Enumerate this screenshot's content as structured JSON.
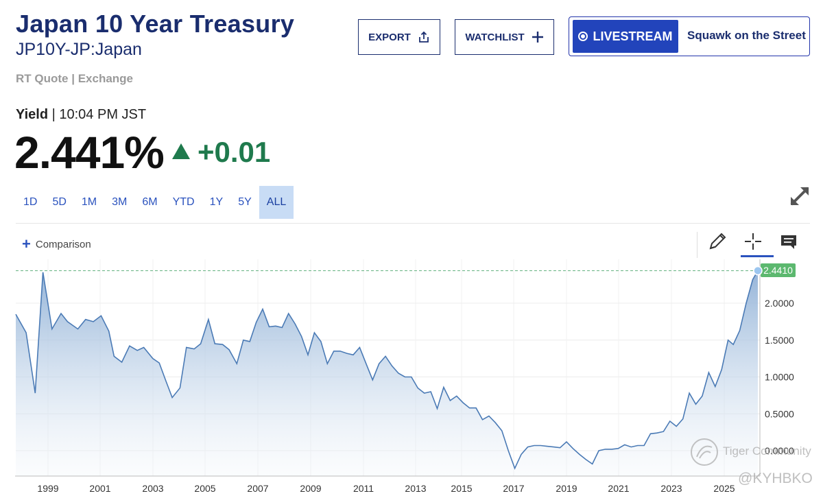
{
  "header": {
    "title": "Japan 10 Year Treasury",
    "symbol": "JP10Y-JP:Japan",
    "rt_quote": "RT Quote | Exchange"
  },
  "toolbar": {
    "export_label": "EXPORT",
    "watchlist_label": "WATCHLIST",
    "livestream_label": "LIVESTREAM",
    "squawk_label": "Squawk on the Street"
  },
  "quote": {
    "yield_label": "Yield",
    "time": "10:04 PM JST",
    "price": "2.441%",
    "change": "+0.01",
    "change_color": "#1f7a4d"
  },
  "ranges": [
    {
      "label": "1D"
    },
    {
      "label": "5D"
    },
    {
      "label": "1M"
    },
    {
      "label": "3M"
    },
    {
      "label": "6M"
    },
    {
      "label": "YTD"
    },
    {
      "label": "1Y"
    },
    {
      "label": "5Y"
    },
    {
      "label": "ALL",
      "active": true
    }
  ],
  "chart_toolbar": {
    "comparison_label": "Comparison",
    "icons": [
      "draw-icon",
      "crosshair-icon",
      "comment-icon"
    ],
    "active_tool": "crosshair-icon"
  },
  "watermark": {
    "text": "Tiger Community",
    "handle": "@KYHBKO"
  },
  "chart_data": {
    "type": "area",
    "x_ticks": [
      "1999",
      "2001",
      "2003",
      "2005",
      "2007",
      "2009",
      "2011",
      "2013",
      "2015",
      "2017",
      "2019",
      "2021",
      "2023",
      "2025"
    ],
    "y_ticks": [
      "2.0000",
      "1.5000",
      "1.0000",
      "0.5000",
      "0.0000"
    ],
    "y_range": [
      -0.35,
      2.6
    ],
    "x_range": [
      1997.95,
      2026.25
    ],
    "last_value": 2.441,
    "last_value_label": "2.4410",
    "line_color": "#4a7ab5",
    "points": [
      [
        1998.0,
        1.85
      ],
      [
        1998.4,
        1.6
      ],
      [
        1998.75,
        0.78
      ],
      [
        1999.05,
        2.42
      ],
      [
        1999.4,
        1.65
      ],
      [
        1999.75,
        1.86
      ],
      [
        2000.0,
        1.75
      ],
      [
        2000.4,
        1.65
      ],
      [
        2000.7,
        1.78
      ],
      [
        2001.0,
        1.75
      ],
      [
        2001.3,
        1.83
      ],
      [
        2001.6,
        1.62
      ],
      [
        2001.8,
        1.28
      ],
      [
        2002.1,
        1.2
      ],
      [
        2002.4,
        1.42
      ],
      [
        2002.7,
        1.36
      ],
      [
        2002.95,
        1.4
      ],
      [
        2003.3,
        1.25
      ],
      [
        2003.55,
        1.19
      ],
      [
        2003.8,
        0.95
      ],
      [
        2004.05,
        0.72
      ],
      [
        2004.35,
        0.85
      ],
      [
        2004.6,
        1.4
      ],
      [
        2004.9,
        1.38
      ],
      [
        2005.15,
        1.45
      ],
      [
        2005.45,
        1.78
      ],
      [
        2005.7,
        1.45
      ],
      [
        2006.0,
        1.44
      ],
      [
        2006.25,
        1.37
      ],
      [
        2006.55,
        1.18
      ],
      [
        2006.8,
        1.5
      ],
      [
        2007.05,
        1.48
      ],
      [
        2007.3,
        1.74
      ],
      [
        2007.55,
        1.92
      ],
      [
        2007.8,
        1.68
      ],
      [
        2008.05,
        1.69
      ],
      [
        2008.3,
        1.67
      ],
      [
        2008.55,
        1.86
      ],
      [
        2008.8,
        1.72
      ],
      [
        2009.05,
        1.55
      ],
      [
        2009.3,
        1.3
      ],
      [
        2009.55,
        1.6
      ],
      [
        2009.8,
        1.48
      ],
      [
        2010.05,
        1.18
      ],
      [
        2010.3,
        1.35
      ],
      [
        2010.55,
        1.35
      ],
      [
        2010.8,
        1.32
      ],
      [
        2011.05,
        1.3
      ],
      [
        2011.3,
        1.4
      ],
      [
        2011.55,
        1.18
      ],
      [
        2011.8,
        0.96
      ],
      [
        2012.05,
        1.18
      ],
      [
        2012.3,
        1.28
      ],
      [
        2012.55,
        1.15
      ],
      [
        2012.8,
        1.05
      ],
      [
        2013.05,
        1.0
      ],
      [
        2013.3,
        1.0
      ],
      [
        2013.55,
        0.85
      ],
      [
        2013.8,
        0.78
      ],
      [
        2014.05,
        0.8
      ],
      [
        2014.3,
        0.57
      ],
      [
        2014.55,
        0.86
      ],
      [
        2014.8,
        0.68
      ],
      [
        2015.05,
        0.74
      ],
      [
        2015.3,
        0.65
      ],
      [
        2015.55,
        0.58
      ],
      [
        2015.8,
        0.58
      ],
      [
        2016.05,
        0.42
      ],
      [
        2016.3,
        0.47
      ],
      [
        2016.55,
        0.38
      ],
      [
        2016.8,
        0.27
      ],
      [
        2017.05,
        0.0
      ],
      [
        2017.3,
        -0.24
      ],
      [
        2017.55,
        -0.05
      ],
      [
        2017.8,
        0.05
      ],
      [
        2018.05,
        0.07
      ],
      [
        2018.3,
        0.07
      ],
      [
        2018.55,
        0.06
      ],
      [
        2018.8,
        0.05
      ],
      [
        2019.05,
        0.04
      ],
      [
        2019.3,
        0.12
      ],
      [
        2019.55,
        0.03
      ],
      [
        2019.8,
        -0.05
      ],
      [
        2020.05,
        -0.12
      ],
      [
        2020.3,
        -0.18
      ],
      [
        2020.55,
        0.0
      ],
      [
        2020.8,
        0.02
      ],
      [
        2021.05,
        0.02
      ],
      [
        2021.3,
        0.03
      ],
      [
        2021.55,
        0.08
      ],
      [
        2021.8,
        0.05
      ],
      [
        2022.05,
        0.07
      ],
      [
        2022.3,
        0.07
      ],
      [
        2022.55,
        0.23
      ],
      [
        2022.8,
        0.24
      ],
      [
        2023.05,
        0.26
      ],
      [
        2023.3,
        0.4
      ],
      [
        2023.55,
        0.33
      ],
      [
        2023.8,
        0.43
      ],
      [
        2024.05,
        0.78
      ],
      [
        2024.3,
        0.63
      ],
      [
        2024.55,
        0.74
      ],
      [
        2024.8,
        1.06
      ],
      [
        2025.05,
        0.87
      ],
      [
        2025.3,
        1.1
      ],
      [
        2025.55,
        1.5
      ],
      [
        2025.75,
        1.44
      ],
      [
        2026.0,
        1.63
      ],
      [
        2026.25,
        2.0
      ],
      [
        2026.5,
        2.32
      ],
      [
        2026.7,
        2.441
      ]
    ]
  }
}
